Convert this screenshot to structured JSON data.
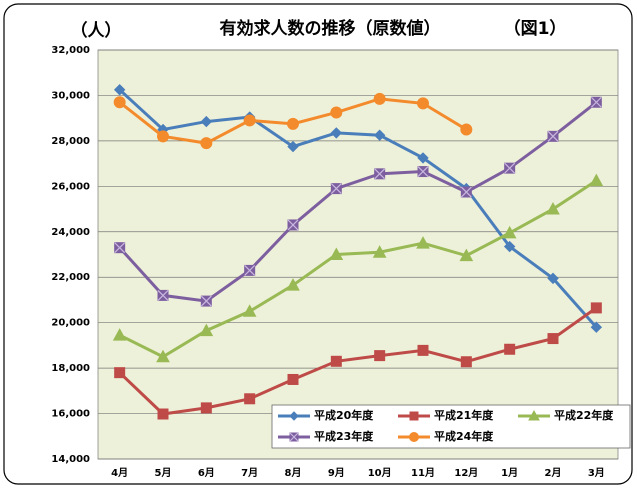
{
  "chart_data": {
    "type": "line",
    "title": "有効求人数の推移（原数値）",
    "unit_label": "（人）",
    "figure_label": "（図1）",
    "categories": [
      "4月",
      "5月",
      "6月",
      "7月",
      "8月",
      "9月",
      "10月",
      "11月",
      "12月",
      "1月",
      "2月",
      "3月"
    ],
    "series": [
      {
        "name": "平成20年度",
        "color": "#4a7ebb",
        "marker": "diamond",
        "values": [
          30250,
          28500,
          28850,
          29050,
          27750,
          28350,
          28250,
          27250,
          25900,
          23350,
          21950,
          19800
        ]
      },
      {
        "name": "平成21年度",
        "color": "#be4b48",
        "marker": "square",
        "values": [
          17800,
          15980,
          16250,
          16650,
          17500,
          18300,
          18550,
          18780,
          18280,
          18830,
          19300,
          20650
        ]
      },
      {
        "name": "平成22年度",
        "color": "#98b954",
        "marker": "triangle",
        "values": [
          19450,
          18500,
          19650,
          20500,
          21650,
          23000,
          23100,
          23500,
          22950,
          23950,
          25000,
          26250
        ]
      },
      {
        "name": "平成23年度",
        "color": "#7d5fa0",
        "marker": "square-x",
        "values": [
          23300,
          21200,
          20950,
          22300,
          24300,
          25900,
          26550,
          26650,
          25750,
          26800,
          28200,
          29700
        ]
      },
      {
        "name": "平成24年度",
        "color": "#f38b2c",
        "marker": "circle",
        "values": [
          29700,
          28200,
          27900,
          28900,
          28750,
          29250,
          29850,
          29650,
          28500,
          null,
          null,
          null
        ]
      }
    ],
    "ylim": [
      14000,
      32000
    ],
    "yticks": [
      {
        "value": 14000,
        "label": "14,000"
      },
      {
        "value": 16000,
        "label": "16,000"
      },
      {
        "value": 18000,
        "label": "18,000"
      },
      {
        "value": 20000,
        "label": "20,000"
      },
      {
        "value": 22000,
        "label": "22,000"
      },
      {
        "value": 24000,
        "label": "24,000"
      },
      {
        "value": 26000,
        "label": "26,000"
      },
      {
        "value": 28000,
        "label": "28,000"
      },
      {
        "value": 30000,
        "label": "30,000"
      },
      {
        "value": 32000,
        "label": "32,000"
      }
    ],
    "grid": true,
    "plot_background": "#eef1d9"
  }
}
